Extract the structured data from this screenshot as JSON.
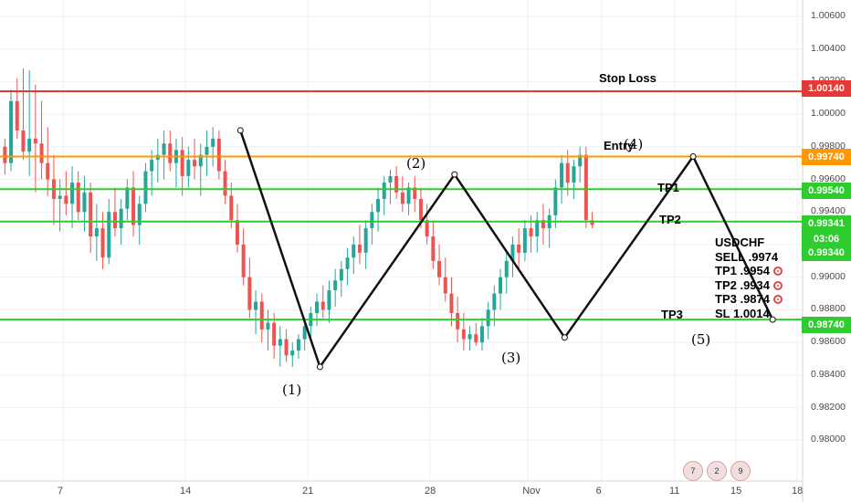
{
  "chart_data": {
    "type": "candlestick",
    "symbol": "USDCHF",
    "ylim": [
      0.9775,
      1.007
    ],
    "y_ticks": [
      "1.00600",
      "1.00400",
      "1.00200",
      "1.00000",
      "0.99800",
      "0.99600",
      "0.99400",
      "0.99200",
      "0.99000",
      "0.98800",
      "0.98600",
      "0.98400",
      "0.98200",
      "0.98000"
    ],
    "x_ticks": [
      {
        "label": "7",
        "bar": 10
      },
      {
        "label": "14",
        "bar": 30
      },
      {
        "label": "21",
        "bar": 50
      },
      {
        "label": "28",
        "bar": 70
      },
      {
        "label": "Nov",
        "bar": 86
      },
      {
        "label": "6",
        "bar": 98
      },
      {
        "label": "11",
        "bar": 110
      },
      {
        "label": "15",
        "bar": 120
      },
      {
        "label": "18",
        "bar": 130
      }
    ],
    "bar_count": 140,
    "candles": [
      [
        0.998,
        0.9985,
        0.9963,
        0.997
      ],
      [
        0.997,
        1.0015,
        0.9965,
        1.0008
      ],
      [
        1.0008,
        1.0022,
        0.9985,
        0.999
      ],
      [
        0.999,
        1.0028,
        0.9972,
        0.9977
      ],
      [
        0.9977,
        1.0027,
        0.9962,
        0.9985
      ],
      [
        0.9985,
        1.0018,
        0.9952,
        0.9982
      ],
      [
        0.9982,
        1.0008,
        0.996,
        0.997
      ],
      [
        0.997,
        0.9992,
        0.995,
        0.996
      ],
      [
        0.996,
        0.9975,
        0.9932,
        0.9948
      ],
      [
        0.9948,
        0.996,
        0.9928,
        0.995
      ],
      [
        0.995,
        0.9965,
        0.9938,
        0.9945
      ],
      [
        0.9945,
        0.9968,
        0.993,
        0.9958
      ],
      [
        0.9958,
        0.9965,
        0.9935,
        0.994
      ],
      [
        0.994,
        0.9962,
        0.9928,
        0.9952
      ],
      [
        0.9952,
        0.9958,
        0.9915,
        0.9925
      ],
      [
        0.9925,
        0.9945,
        0.991,
        0.993
      ],
      [
        0.993,
        0.994,
        0.9905,
        0.9912
      ],
      [
        0.9912,
        0.9948,
        0.9908,
        0.994
      ],
      [
        0.994,
        0.9955,
        0.9925,
        0.993
      ],
      [
        0.993,
        0.9948,
        0.992,
        0.9942
      ],
      [
        0.9942,
        0.996,
        0.9935,
        0.9955
      ],
      [
        0.9955,
        0.9965,
        0.9925,
        0.9932
      ],
      [
        0.9932,
        0.995,
        0.992,
        0.9945
      ],
      [
        0.9945,
        0.997,
        0.994,
        0.9965
      ],
      [
        0.9965,
        0.9978,
        0.995,
        0.9972
      ],
      [
        0.9972,
        0.9985,
        0.9958,
        0.9975
      ],
      [
        0.9975,
        0.999,
        0.996,
        0.9982
      ],
      [
        0.9982,
        0.999,
        0.9965,
        0.997
      ],
      [
        0.997,
        0.9985,
        0.9955,
        0.9978
      ],
      [
        0.9978,
        0.9986,
        0.995,
        0.9962
      ],
      [
        0.9962,
        0.998,
        0.9955,
        0.9972
      ],
      [
        0.9972,
        0.9985,
        0.996,
        0.9968
      ],
      [
        0.9968,
        0.9982,
        0.995,
        0.9975
      ],
      [
        0.9975,
        0.999,
        0.9962,
        0.998
      ],
      [
        0.998,
        0.9992,
        0.9968,
        0.9985
      ],
      [
        0.9985,
        0.999,
        0.996,
        0.9965
      ],
      [
        0.9965,
        0.9972,
        0.9945,
        0.995
      ],
      [
        0.995,
        0.9958,
        0.993,
        0.9935
      ],
      [
        0.9935,
        0.9945,
        0.9915,
        0.992
      ],
      [
        0.992,
        0.993,
        0.9895,
        0.99
      ],
      [
        0.99,
        0.9912,
        0.9875,
        0.988
      ],
      [
        0.988,
        0.9892,
        0.9865,
        0.9885
      ],
      [
        0.9885,
        0.989,
        0.986,
        0.9868
      ],
      [
        0.9868,
        0.988,
        0.9855,
        0.9872
      ],
      [
        0.9872,
        0.9878,
        0.985,
        0.9858
      ],
      [
        0.9858,
        0.987,
        0.9845,
        0.9862
      ],
      [
        0.9862,
        0.9868,
        0.9848,
        0.9852
      ],
      [
        0.9852,
        0.986,
        0.9845,
        0.9855
      ],
      [
        0.9855,
        0.9865,
        0.985,
        0.9862
      ],
      [
        0.9862,
        0.9875,
        0.9855,
        0.987
      ],
      [
        0.987,
        0.9882,
        0.9862,
        0.9878
      ],
      [
        0.9878,
        0.989,
        0.987,
        0.9885
      ],
      [
        0.9885,
        0.9895,
        0.9875,
        0.988
      ],
      [
        0.988,
        0.9898,
        0.9872,
        0.9892
      ],
      [
        0.9892,
        0.9905,
        0.9882,
        0.9898
      ],
      [
        0.9898,
        0.991,
        0.9888,
        0.9905
      ],
      [
        0.9905,
        0.9918,
        0.9895,
        0.9912
      ],
      [
        0.9912,
        0.9925,
        0.9902,
        0.992
      ],
      [
        0.992,
        0.9932,
        0.9908,
        0.9915
      ],
      [
        0.9915,
        0.9935,
        0.9905,
        0.993
      ],
      [
        0.993,
        0.9945,
        0.992,
        0.994
      ],
      [
        0.994,
        0.9955,
        0.9928,
        0.9948
      ],
      [
        0.9948,
        0.9962,
        0.9938,
        0.9958
      ],
      [
        0.9958,
        0.9966,
        0.9945,
        0.9962
      ],
      [
        0.9962,
        0.9968,
        0.9948,
        0.9952
      ],
      [
        0.9952,
        0.9962,
        0.994,
        0.9945
      ],
      [
        0.9945,
        0.9958,
        0.9938,
        0.9955
      ],
      [
        0.9955,
        0.9962,
        0.994,
        0.9948
      ],
      [
        0.9948,
        0.9955,
        0.993,
        0.9935
      ],
      [
        0.9935,
        0.9945,
        0.992,
        0.9925
      ],
      [
        0.9925,
        0.9935,
        0.9905,
        0.991
      ],
      [
        0.991,
        0.992,
        0.9895,
        0.99
      ],
      [
        0.99,
        0.9912,
        0.9885,
        0.989
      ],
      [
        0.989,
        0.99,
        0.987,
        0.9878
      ],
      [
        0.9878,
        0.9888,
        0.986,
        0.9868
      ],
      [
        0.9868,
        0.9878,
        0.9855,
        0.9862
      ],
      [
        0.9862,
        0.987,
        0.9855,
        0.9865
      ],
      [
        0.9865,
        0.9872,
        0.9858,
        0.986
      ],
      [
        0.986,
        0.9875,
        0.9855,
        0.987
      ],
      [
        0.987,
        0.9885,
        0.9862,
        0.988
      ],
      [
        0.988,
        0.9895,
        0.987,
        0.989
      ],
      [
        0.989,
        0.9905,
        0.988,
        0.99
      ],
      [
        0.99,
        0.9915,
        0.989,
        0.991
      ],
      [
        0.991,
        0.9925,
        0.99,
        0.992
      ],
      [
        0.992,
        0.993,
        0.9905,
        0.9915
      ],
      [
        0.9915,
        0.9935,
        0.991,
        0.993
      ],
      [
        0.993,
        0.9938,
        0.9915,
        0.9925
      ],
      [
        0.9925,
        0.994,
        0.9915,
        0.9935
      ],
      [
        0.9935,
        0.9945,
        0.992,
        0.993
      ],
      [
        0.993,
        0.9942,
        0.9918,
        0.9938
      ],
      [
        0.9938,
        0.996,
        0.993,
        0.9955
      ],
      [
        0.9955,
        0.9975,
        0.9945,
        0.997
      ],
      [
        0.997,
        0.9978,
        0.995,
        0.9958
      ],
      [
        0.9958,
        0.9972,
        0.9948,
        0.9968
      ],
      [
        0.9968,
        0.998,
        0.9958,
        0.9975
      ],
      [
        0.9975,
        0.998,
        0.993,
        0.9935
      ],
      [
        0.9935,
        0.994,
        0.993,
        0.9932
      ]
    ],
    "horizontal_levels": [
      {
        "name": "Stop Loss",
        "value": 1.0014,
        "color": "#e53935",
        "badge": "1.00140"
      },
      {
        "name": "Entry",
        "value": 0.9974,
        "color": "#ff9800",
        "badge": "0.99740"
      },
      {
        "name": "TP1",
        "value": 0.9954,
        "color": "#2ecc2e",
        "badge": "0.99540"
      },
      {
        "name": "TP2",
        "value": 0.99341,
        "color": "#2ecc2e",
        "badge": "0.99341"
      },
      {
        "name": "TP3",
        "value": 0.9874,
        "color": "#2ecc2e",
        "badge": "0.98740"
      }
    ],
    "wave_path": [
      {
        "bar": 39,
        "value": 0.999,
        "label": ""
      },
      {
        "bar": 52,
        "value": 0.9845,
        "label": "(1)"
      },
      {
        "bar": 74,
        "value": 0.9963,
        "label": "(2)"
      },
      {
        "bar": 92,
        "value": 0.9863,
        "label": "(3)"
      },
      {
        "bar": 113,
        "value": 0.9974,
        "label": "(4)"
      },
      {
        "bar": 126,
        "value": 0.9874,
        "label": "(5)"
      }
    ],
    "price_badge_time": "03:06",
    "hidden_badge": "0.99340"
  },
  "annotations": {
    "stop_loss": "Stop Loss",
    "entry": "Entry",
    "tp1": "TP1",
    "tp2": "TP2",
    "tp3": "TP3"
  },
  "trade_notes": {
    "pair": "USDCHF",
    "sell": "SELL .9974",
    "tp1": "TP1 .9954",
    "tp2": "TP2 .9934",
    "tp3": "TP3 .9874",
    "sl": "SL 1.0014"
  },
  "events": [
    "7",
    "2",
    "9"
  ],
  "colors": {
    "up": "#26a69a",
    "down": "#ef5350",
    "grid": "#eef0f3",
    "axis": "#2c2c2c"
  }
}
